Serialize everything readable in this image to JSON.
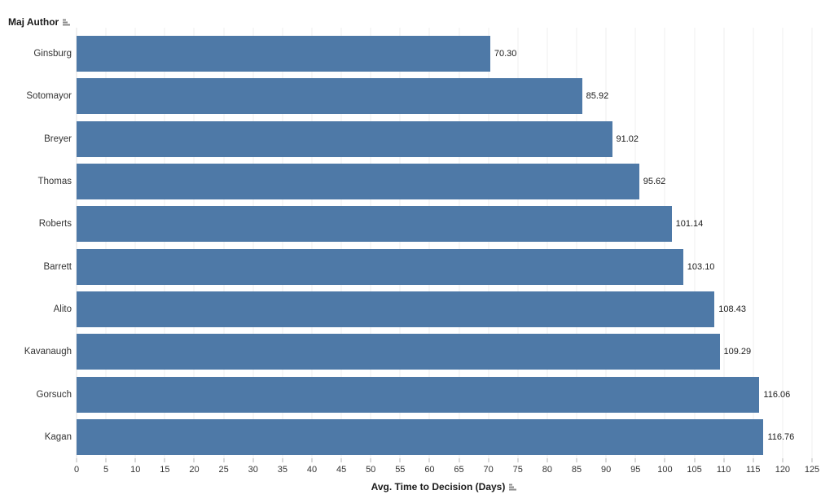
{
  "chart_data": {
    "type": "bar",
    "orientation": "horizontal",
    "row_field_label": "Maj Author",
    "categories": [
      "Ginsburg",
      "Sotomayor",
      "Breyer",
      "Thomas",
      "Roberts",
      "Barrett",
      "Alito",
      "Kavanaugh",
      "Gorsuch",
      "Kagan"
    ],
    "values": [
      70.3,
      85.92,
      91.02,
      95.62,
      101.14,
      103.1,
      108.43,
      109.29,
      116.06,
      116.76
    ],
    "value_labels": [
      "70.30",
      "85.92",
      "91.02",
      "95.62",
      "101.14",
      "103.10",
      "108.43",
      "109.29",
      "116.06",
      "116.76"
    ],
    "xlabel": "Avg. Time to Decision (Days)",
    "xlim": [
      0,
      125
    ],
    "x_tick_step": 5,
    "x_ticks": [
      0,
      5,
      10,
      15,
      20,
      25,
      30,
      35,
      40,
      45,
      50,
      55,
      60,
      65,
      70,
      75,
      80,
      85,
      90,
      95,
      100,
      105,
      110,
      115,
      120,
      125
    ],
    "grid": true,
    "legend": "none",
    "bar_color": "#4e79a7",
    "gridline_color": "#efefef",
    "tick_color": "#b4b4b4",
    "text_color": "#333333",
    "sort_icon": "sort-bars-icon"
  }
}
